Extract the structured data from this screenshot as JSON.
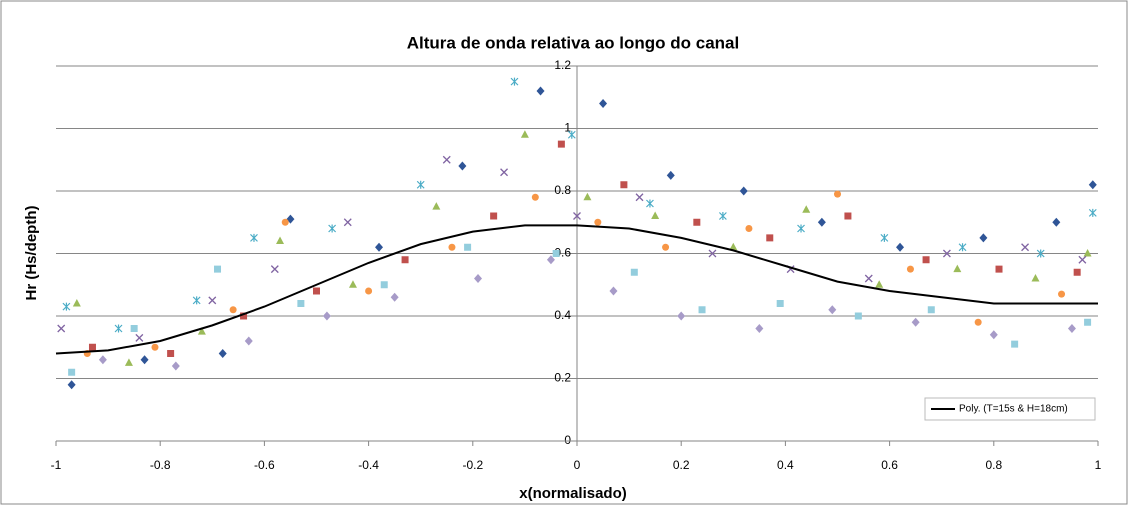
{
  "chart_data": {
    "type": "scatter",
    "title": "Altura de onda relativa ao longo do canal",
    "x_label": "x(normalisado)",
    "y_label": "Hr (Hs/depth)",
    "xlim": [
      -1,
      1
    ],
    "ylim": [
      0,
      1.2
    ],
    "xticks": [
      -1,
      -0.8,
      -0.6,
      -0.4,
      -0.2,
      0,
      0.2,
      0.4,
      0.6,
      0.8,
      1
    ],
    "yticks": [
      0,
      0.2,
      0.4,
      0.6,
      0.8,
      1,
      1.2
    ],
    "grid": true,
    "legend": "lower right",
    "series": [
      {
        "color": "#2f5597",
        "marker": "diamond",
        "x": [
          -0.97,
          -0.83,
          -0.68,
          -0.55,
          -0.38,
          -0.22,
          -0.07,
          0.05,
          0.18,
          0.32,
          0.47,
          0.62,
          0.78,
          0.92,
          0.99
        ],
        "values": [
          0.18,
          0.26,
          0.28,
          0.71,
          0.62,
          0.88,
          1.12,
          1.08,
          0.85,
          0.8,
          0.7,
          0.62,
          0.65,
          0.7,
          0.82
        ]
      },
      {
        "color": "#c0504d",
        "marker": "square",
        "x": [
          -0.93,
          -0.78,
          -0.64,
          -0.5,
          -0.33,
          -0.16,
          -0.03,
          0.09,
          0.23,
          0.37,
          0.52,
          0.67,
          0.81,
          0.96
        ],
        "values": [
          0.3,
          0.28,
          0.4,
          0.48,
          0.58,
          0.72,
          0.95,
          0.82,
          0.7,
          0.65,
          0.72,
          0.58,
          0.55,
          0.54
        ]
      },
      {
        "color": "#9bbb59",
        "marker": "triangle",
        "x": [
          -0.96,
          -0.86,
          -0.72,
          -0.57,
          -0.43,
          -0.27,
          -0.1,
          0.02,
          0.15,
          0.3,
          0.44,
          0.58,
          0.73,
          0.88,
          0.98
        ],
        "values": [
          0.44,
          0.25,
          0.35,
          0.64,
          0.5,
          0.75,
          0.98,
          0.78,
          0.72,
          0.62,
          0.74,
          0.5,
          0.55,
          0.52,
          0.6
        ]
      },
      {
        "color": "#8064a2",
        "marker": "cross",
        "x": [
          -0.99,
          -0.84,
          -0.7,
          -0.58,
          -0.44,
          -0.25,
          -0.14,
          0.0,
          0.12,
          0.26,
          0.41,
          0.56,
          0.71,
          0.86,
          0.97
        ],
        "values": [
          0.36,
          0.33,
          0.45,
          0.55,
          0.7,
          0.9,
          0.86,
          0.72,
          0.78,
          0.6,
          0.55,
          0.52,
          0.6,
          0.62,
          0.58
        ]
      },
      {
        "color": "#4bacc6",
        "marker": "star",
        "x": [
          -0.98,
          -0.88,
          -0.73,
          -0.62,
          -0.47,
          -0.3,
          -0.12,
          -0.01,
          0.14,
          0.28,
          0.43,
          0.59,
          0.74,
          0.89,
          0.99
        ],
        "values": [
          0.43,
          0.36,
          0.45,
          0.65,
          0.68,
          0.82,
          1.15,
          0.98,
          0.76,
          0.72,
          0.68,
          0.65,
          0.62,
          0.6,
          0.73
        ]
      },
      {
        "color": "#f79646",
        "marker": "circle",
        "x": [
          -0.94,
          -0.81,
          -0.66,
          -0.56,
          -0.4,
          -0.24,
          -0.08,
          0.04,
          0.17,
          0.33,
          0.5,
          0.64,
          0.77,
          0.93
        ],
        "values": [
          0.28,
          0.3,
          0.42,
          0.7,
          0.48,
          0.62,
          0.78,
          0.7,
          0.62,
          0.68,
          0.79,
          0.55,
          0.38,
          0.47
        ]
      },
      {
        "color": "#a79bc8",
        "marker": "diamond",
        "x": [
          -0.91,
          -0.77,
          -0.63,
          -0.48,
          -0.35,
          -0.19,
          -0.05,
          0.07,
          0.2,
          0.35,
          0.49,
          0.65,
          0.8,
          0.95
        ],
        "values": [
          0.26,
          0.24,
          0.32,
          0.4,
          0.46,
          0.52,
          0.58,
          0.48,
          0.4,
          0.36,
          0.42,
          0.38,
          0.34,
          0.36
        ]
      },
      {
        "color": "#93cddd",
        "marker": "square",
        "x": [
          -0.97,
          -0.85,
          -0.69,
          -0.53,
          -0.37,
          -0.21,
          -0.04,
          0.11,
          0.24,
          0.39,
          0.54,
          0.68,
          0.84,
          0.98
        ],
        "values": [
          0.22,
          0.36,
          0.55,
          0.44,
          0.5,
          0.62,
          0.6,
          0.54,
          0.42,
          0.44,
          0.4,
          0.42,
          0.31,
          0.38
        ]
      },
      {
        "name": "Poly. (T=15s & H=18cm)",
        "color": "#000000",
        "marker": "line",
        "x": [
          -1,
          -0.9,
          -0.8,
          -0.7,
          -0.6,
          -0.5,
          -0.4,
          -0.3,
          -0.2,
          -0.1,
          0,
          0.1,
          0.2,
          0.3,
          0.4,
          0.5,
          0.6,
          0.7,
          0.8,
          0.9,
          1
        ],
        "values": [
          0.28,
          0.29,
          0.32,
          0.37,
          0.43,
          0.5,
          0.57,
          0.63,
          0.67,
          0.69,
          0.69,
          0.68,
          0.65,
          0.61,
          0.56,
          0.51,
          0.48,
          0.46,
          0.44,
          0.44,
          0.44
        ]
      }
    ]
  }
}
